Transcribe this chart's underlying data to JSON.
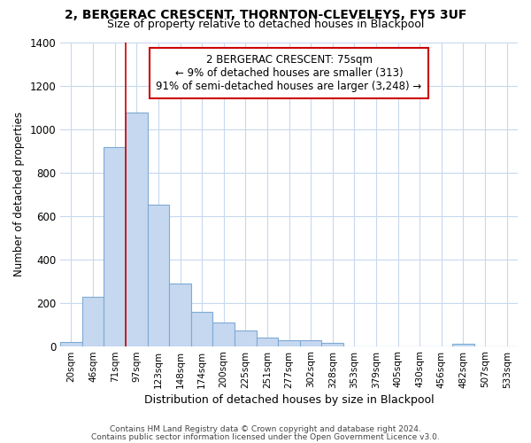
{
  "title1": "2, BERGERAC CRESCENT, THORNTON-CLEVELEYS, FY5 3UF",
  "title2": "Size of property relative to detached houses in Blackpool",
  "xlabel": "Distribution of detached houses by size in Blackpool",
  "ylabel": "Number of detached properties",
  "categories": [
    "20sqm",
    "46sqm",
    "71sqm",
    "97sqm",
    "123sqm",
    "148sqm",
    "174sqm",
    "200sqm",
    "225sqm",
    "251sqm",
    "277sqm",
    "302sqm",
    "328sqm",
    "353sqm",
    "379sqm",
    "405sqm",
    "430sqm",
    "456sqm",
    "482sqm",
    "507sqm",
    "533sqm"
  ],
  "values": [
    20,
    225,
    915,
    1075,
    650,
    290,
    158,
    108,
    70,
    40,
    27,
    25,
    15,
    0,
    0,
    0,
    0,
    0,
    12,
    0,
    0
  ],
  "bar_color": "#c5d8f0",
  "bar_edge_color": "#7eaad4",
  "vline_color": "#cc0000",
  "vline_index": 2,
  "annotation_line1": "2 BERGERAC CRESCENT: 75sqm",
  "annotation_line2": "← 9% of detached houses are smaller (313)",
  "annotation_line3": "91% of semi-detached houses are larger (3,248) →",
  "annotation_box_facecolor": "#ffffff",
  "annotation_box_edgecolor": "#cc0000",
  "ylim": [
    0,
    1400
  ],
  "yticks": [
    0,
    200,
    400,
    600,
    800,
    1000,
    1200,
    1400
  ],
  "grid_color": "#c8d8ee",
  "bg_color": "#ffffff",
  "footer1": "Contains HM Land Registry data © Crown copyright and database right 2024.",
  "footer2": "Contains public sector information licensed under the Open Government Licence v3.0."
}
